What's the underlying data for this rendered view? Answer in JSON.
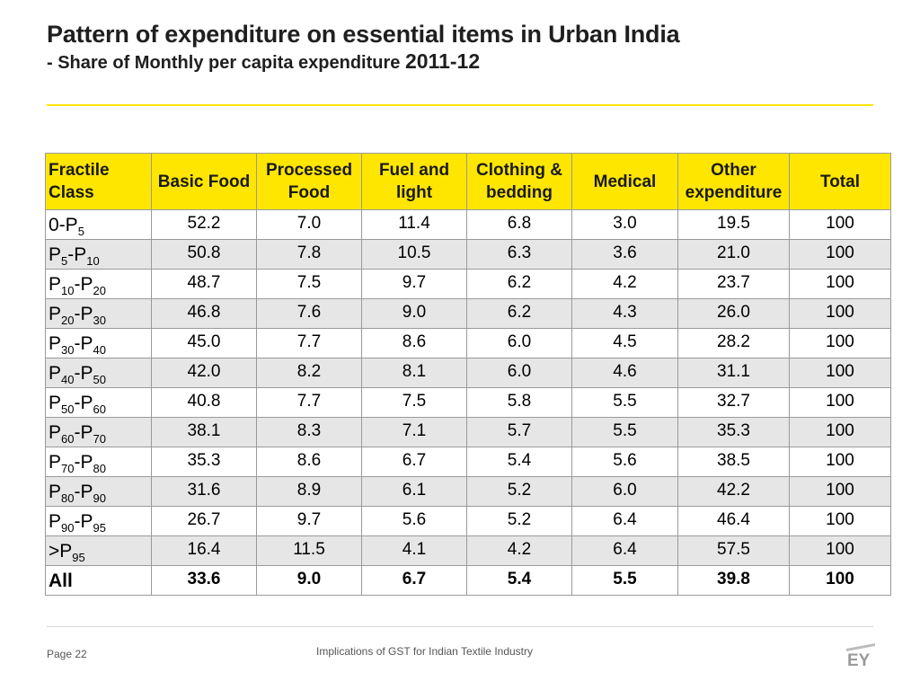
{
  "title": "Pattern of expenditure on essential items in Urban India",
  "subtitle": {
    "prefix": "- Share of Monthly per capita expenditure",
    "year": "2011-12"
  },
  "table": {
    "headers": [
      "Fractile Class",
      "Basic Food",
      "Processed Food",
      "Fuel and light",
      "Clothing & bedding",
      "Medical",
      "Other expenditure",
      "Total"
    ],
    "rows": [
      {
        "fractile": {
          "a": "0-P",
          "a_sub": "5",
          "b": "",
          "b_sub": ""
        },
        "values": [
          "52.2",
          "7.0",
          "11.4",
          "6.8",
          "3.0",
          "19.5",
          "100"
        ]
      },
      {
        "fractile": {
          "a": "P",
          "a_sub": "5",
          "b": "-P",
          "b_sub": "10"
        },
        "values": [
          "50.8",
          "7.8",
          "10.5",
          "6.3",
          "3.6",
          "21.0",
          "100"
        ]
      },
      {
        "fractile": {
          "a": "P",
          "a_sub": "10",
          "b": "-P",
          "b_sub": "20"
        },
        "values": [
          "48.7",
          "7.5",
          "9.7",
          "6.2",
          "4.2",
          "23.7",
          "100"
        ]
      },
      {
        "fractile": {
          "a": "P",
          "a_sub": "20",
          "b": "-P",
          "b_sub": "30"
        },
        "values": [
          "46.8",
          "7.6",
          "9.0",
          "6.2",
          "4.3",
          "26.0",
          "100"
        ]
      },
      {
        "fractile": {
          "a": "P",
          "a_sub": "30",
          "b": "-P",
          "b_sub": "40"
        },
        "values": [
          "45.0",
          "7.7",
          "8.6",
          "6.0",
          "4.5",
          "28.2",
          "100"
        ]
      },
      {
        "fractile": {
          "a": "P",
          "a_sub": "40",
          "b": "-P",
          "b_sub": "50"
        },
        "values": [
          "42.0",
          "8.2",
          "8.1",
          "6.0",
          "4.6",
          "31.1",
          "100"
        ]
      },
      {
        "fractile": {
          "a": "P",
          "a_sub": "50",
          "b": "-P",
          "b_sub": "60"
        },
        "values": [
          "40.8",
          "7.7",
          "7.5",
          "5.8",
          "5.5",
          "32.7",
          "100"
        ]
      },
      {
        "fractile": {
          "a": "P",
          "a_sub": "60",
          "b": "-P",
          "b_sub": "70"
        },
        "values": [
          "38.1",
          "8.3",
          "7.1",
          "5.7",
          "5.5",
          "35.3",
          "100"
        ]
      },
      {
        "fractile": {
          "a": "P",
          "a_sub": "70",
          "b": "-P",
          "b_sub": "80"
        },
        "values": [
          "35.3",
          "8.6",
          "6.7",
          "5.4",
          "5.6",
          "38.5",
          "100"
        ]
      },
      {
        "fractile": {
          "a": "P",
          "a_sub": "80",
          "b": "-P",
          "b_sub": "90"
        },
        "values": [
          "31.6",
          "8.9",
          "6.1",
          "5.2",
          "6.0",
          "42.2",
          "100"
        ]
      },
      {
        "fractile": {
          "a": "P",
          "a_sub": "90",
          "b": "-P",
          "b_sub": "95"
        },
        "values": [
          "26.7",
          "9.7",
          "5.6",
          "5.2",
          "6.4",
          "46.4",
          "100"
        ]
      },
      {
        "fractile": {
          "a": ">P",
          "a_sub": "95",
          "b": "",
          "b_sub": ""
        },
        "values": [
          "16.4",
          "11.5",
          "4.1",
          "4.2",
          "6.4",
          "57.5",
          "100"
        ]
      }
    ],
    "total_row": {
      "label": "All",
      "values": [
        "33.6",
        "9.0",
        "6.7",
        "5.4",
        "5.5",
        "39.8",
        "100"
      ]
    }
  },
  "footer": {
    "page": "Page 22",
    "text": "Implications of GST for Indian Textile Industry"
  },
  "logo_text": "EY",
  "colors": {
    "accent": "#ffe600",
    "row_alt": "#e6e6e6",
    "border": "#9a9a9a"
  }
}
